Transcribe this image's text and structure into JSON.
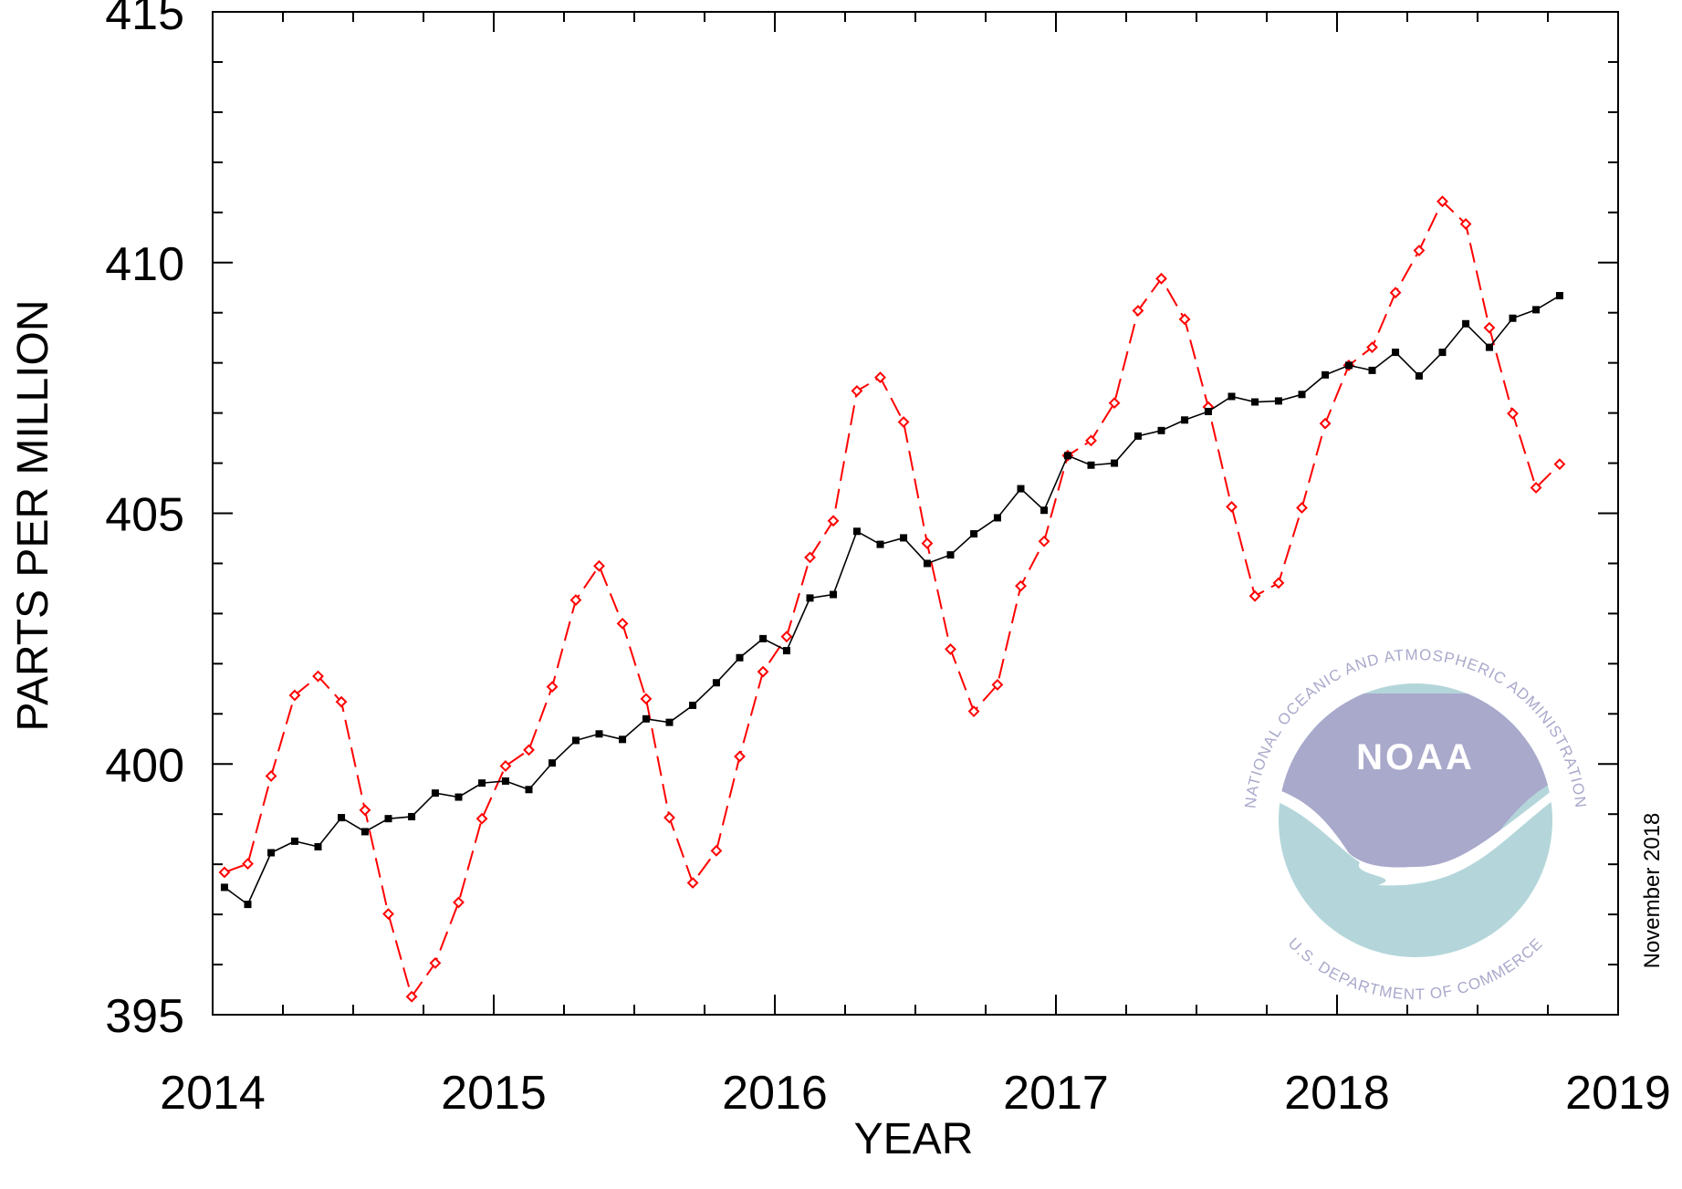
{
  "chart_data": {
    "type": "line",
    "xlabel": "YEAR",
    "ylabel": "PARTS PER MILLION",
    "date_note": "November 2018",
    "logo": {
      "name": "NOAA",
      "top_text": "NATIONAL OCEANIC AND ATMOSPHERIC ADMINISTRATION",
      "bottom_text": "U.S. DEPARTMENT OF COMMERCE"
    },
    "x": [
      2014.042,
      2014.125,
      2014.208,
      2014.292,
      2014.375,
      2014.458,
      2014.542,
      2014.625,
      2014.708,
      2014.792,
      2014.875,
      2014.958,
      2015.042,
      2015.125,
      2015.208,
      2015.292,
      2015.375,
      2015.458,
      2015.542,
      2015.625,
      2015.708,
      2015.792,
      2015.875,
      2015.958,
      2016.042,
      2016.125,
      2016.208,
      2016.292,
      2016.375,
      2016.458,
      2016.542,
      2016.625,
      2016.708,
      2016.792,
      2016.875,
      2016.958,
      2017.042,
      2017.125,
      2017.208,
      2017.292,
      2017.375,
      2017.458,
      2017.542,
      2017.625,
      2017.708,
      2017.792,
      2017.875,
      2017.958,
      2018.042,
      2018.125,
      2018.208,
      2018.292,
      2018.375,
      2018.458,
      2018.542,
      2018.625,
      2018.708,
      2018.792
    ],
    "series": [
      {
        "color": "#ff0000",
        "marker": "diamond",
        "dashed": true,
        "values": [
          397.84,
          398.01,
          399.76,
          401.37,
          401.75,
          401.24,
          399.08,
          397.01,
          395.36,
          396.03,
          397.24,
          398.91,
          399.96,
          400.28,
          401.54,
          403.27,
          403.95,
          402.8,
          401.3,
          398.93,
          397.63,
          398.27,
          400.15,
          401.84,
          402.54,
          404.12,
          404.85,
          407.44,
          407.71,
          406.82,
          404.4,
          402.29,
          401.05,
          401.58,
          403.55,
          404.44,
          406.15,
          406.45,
          407.2,
          409.04,
          409.68,
          408.87,
          407.12,
          405.13,
          403.35,
          403.61,
          405.11,
          406.79,
          407.95,
          408.31,
          409.4,
          410.24,
          411.22,
          410.77,
          408.7,
          406.99,
          405.51,
          405.98
        ]
      },
      {
        "color": "#000000",
        "marker": "square",
        "dashed": false,
        "values": [
          397.54,
          397.2,
          398.23,
          398.46,
          398.35,
          398.93,
          398.65,
          398.91,
          398.95,
          399.42,
          399.34,
          399.62,
          399.66,
          399.49,
          400.02,
          400.47,
          400.6,
          400.49,
          400.9,
          400.83,
          401.17,
          401.62,
          402.12,
          402.5,
          402.26,
          403.31,
          403.38,
          404.64,
          404.38,
          404.51,
          404.0,
          404.17,
          404.59,
          404.91,
          405.49,
          405.06,
          406.15,
          405.96,
          406.0,
          406.54,
          406.65,
          406.86,
          407.03,
          407.33,
          407.22,
          407.24,
          407.37,
          407.76,
          407.95,
          407.85,
          408.21,
          407.74,
          408.21,
          408.78,
          408.31,
          408.89,
          409.06,
          409.34
        ]
      }
    ],
    "xlim": [
      2014,
      2019
    ],
    "xticks": [
      2014,
      2015,
      2016,
      2017,
      2018,
      2019
    ],
    "ylim": [
      395,
      415
    ],
    "yticks": [
      395,
      400,
      405,
      410,
      415
    ]
  }
}
